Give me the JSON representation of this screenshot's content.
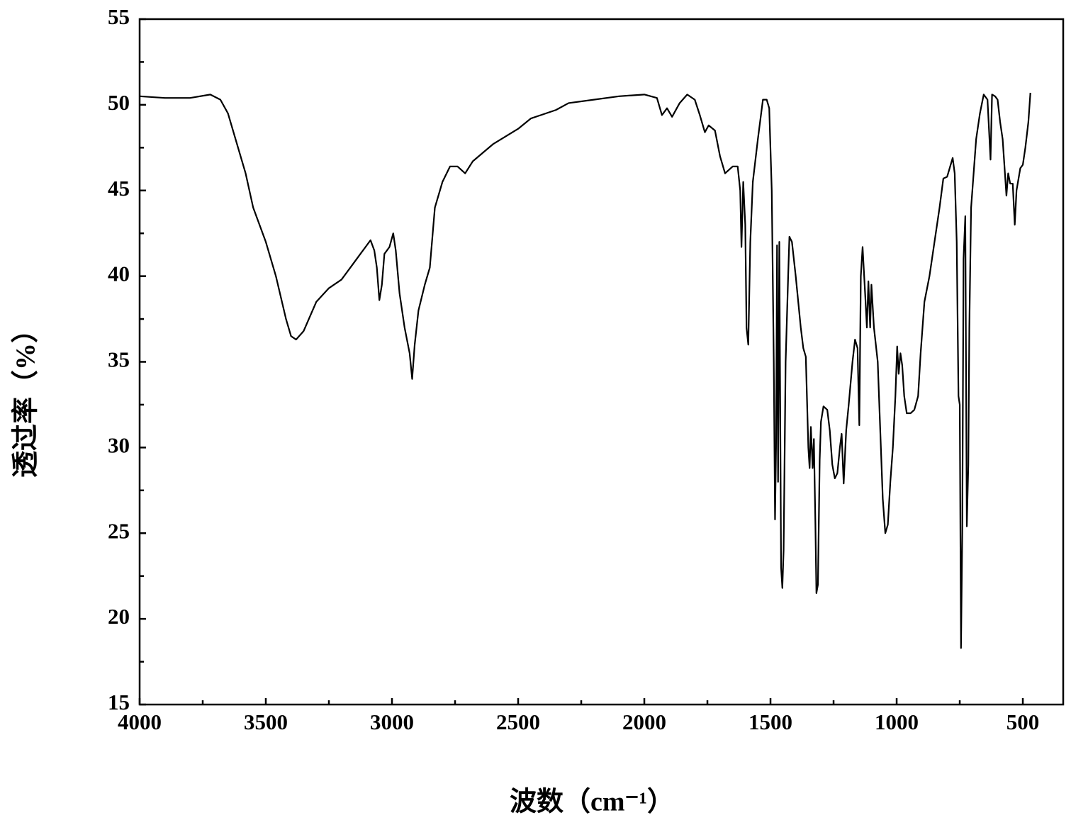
{
  "chart_data": {
    "type": "line",
    "xlabel": "波数（cm⁻¹）",
    "ylabel": "透过率（%）",
    "xlim": [
      4000,
      340
    ],
    "ylim": [
      15,
      55
    ],
    "xticks": [
      4000,
      3500,
      3000,
      2500,
      2000,
      1500,
      1000,
      500
    ],
    "xminorticks": [
      3750,
      3250,
      2750,
      2250,
      1750,
      1250,
      750
    ],
    "yticks": [
      15,
      20,
      25,
      30,
      35,
      40,
      45,
      50,
      55
    ],
    "yminorticks": [
      17.5,
      22.5,
      27.5,
      32.5,
      37.5,
      42.5,
      47.5,
      52.5
    ],
    "color": "#000000",
    "x": [
      4000,
      3900,
      3800,
      3720,
      3680,
      3650,
      3620,
      3580,
      3550,
      3500,
      3460,
      3420,
      3400,
      3380,
      3350,
      3300,
      3250,
      3200,
      3150,
      3100,
      3085,
      3070,
      3060,
      3050,
      3040,
      3030,
      3010,
      2995,
      2985,
      2970,
      2950,
      2930,
      2920,
      2910,
      2895,
      2870,
      2850,
      2830,
      2800,
      2770,
      2740,
      2710,
      2680,
      2600,
      2500,
      2450,
      2350,
      2300,
      2200,
      2100,
      2000,
      1950,
      1930,
      1910,
      1890,
      1860,
      1830,
      1800,
      1780,
      1760,
      1745,
      1720,
      1700,
      1680,
      1650,
      1630,
      1620,
      1615,
      1608,
      1600,
      1595,
      1588,
      1580,
      1570,
      1550,
      1530,
      1515,
      1505,
      1495,
      1487,
      1482,
      1478,
      1474,
      1470,
      1465,
      1458,
      1453,
      1448,
      1440,
      1430,
      1425,
      1415,
      1400,
      1380,
      1370,
      1360,
      1350,
      1345,
      1340,
      1333,
      1328,
      1322,
      1318,
      1312,
      1305,
      1300,
      1290,
      1275,
      1265,
      1255,
      1245,
      1235,
      1225,
      1218,
      1210,
      1200,
      1190,
      1175,
      1165,
      1155,
      1148,
      1142,
      1135,
      1125,
      1118,
      1112,
      1105,
      1100,
      1090,
      1075,
      1065,
      1055,
      1045,
      1035,
      1025,
      1015,
      1005,
      998,
      992,
      985,
      978,
      970,
      960,
      945,
      930,
      915,
      905,
      890,
      870,
      850,
      830,
      815,
      800,
      790,
      778,
      770,
      762,
      755,
      750,
      745,
      740,
      735,
      728,
      722,
      716,
      712,
      705,
      695,
      685,
      670,
      655,
      640,
      628,
      622,
      610,
      600,
      590,
      580,
      565,
      558,
      550,
      540,
      532,
      525,
      510,
      500,
      490,
      478,
      470
    ],
    "values": [
      50.5,
      50.4,
      50.4,
      50.6,
      50.3,
      49.5,
      48,
      46,
      44,
      42,
      40,
      37.5,
      36.5,
      36.3,
      36.8,
      38.5,
      39.3,
      39.8,
      40.8,
      41.8,
      42.1,
      41.5,
      40.5,
      38.6,
      39.5,
      41.3,
      41.7,
      42.5,
      41.5,
      39,
      37,
      35.5,
      34,
      36,
      38,
      39.5,
      40.5,
      44,
      45.5,
      46.4,
      46.4,
      46,
      46.7,
      47.7,
      48.6,
      49.2,
      49.7,
      50.1,
      50.3,
      50.5,
      50.6,
      50.4,
      49.4,
      49.8,
      49.3,
      50.1,
      50.6,
      50.3,
      49.4,
      48.4,
      48.8,
      48.5,
      47,
      46,
      46.4,
      46.4,
      45,
      41.7,
      45.5,
      43,
      37,
      36,
      42,
      45.5,
      48,
      50.3,
      50.3,
      49.8,
      45,
      35,
      25.8,
      30,
      41.8,
      28,
      42,
      23,
      21.8,
      24,
      35,
      40,
      42.3,
      42,
      40,
      37,
      35.8,
      35.3,
      30,
      28.8,
      31.2,
      28.8,
      30.5,
      25.5,
      21.5,
      22,
      29.3,
      31.5,
      32.4,
      32.2,
      31,
      29,
      28.2,
      28.5,
      30,
      30.8,
      27.9,
      31,
      32.5,
      35,
      36.3,
      35.8,
      31.3,
      40,
      41.7,
      39,
      37,
      39.7,
      37,
      39.5,
      37,
      35,
      31,
      27,
      25,
      25.5,
      28,
      30,
      33,
      35.9,
      34.3,
      35.5,
      34.8,
      33,
      32,
      32,
      32.2,
      33,
      35.5,
      38.5,
      40,
      42,
      44,
      45.7,
      45.8,
      46.3,
      46.9,
      46,
      42,
      33,
      32.5,
      18.3,
      25,
      41,
      43.5,
      25.4,
      29,
      37,
      44,
      46,
      48,
      49.5,
      50.6,
      50.3,
      46.8,
      50.6,
      50.5,
      50.3,
      49,
      48,
      44.7,
      46,
      45.4,
      45.4,
      43,
      45,
      46.3,
      46.5,
      47.5,
      49,
      50.7
    ]
  }
}
